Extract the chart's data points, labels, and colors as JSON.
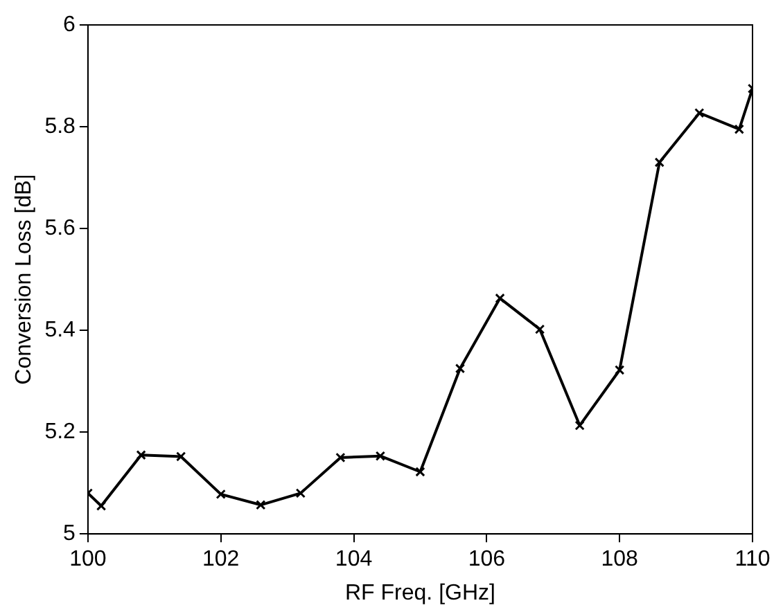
{
  "chart_data": {
    "type": "line",
    "xlabel": "RF Freq. [GHz]",
    "ylabel": "Conversion Loss [dB]",
    "x": [
      100,
      100.2,
      100.8,
      101.4,
      102,
      102.6,
      103.2,
      103.8,
      104.4,
      105,
      105.6,
      106.2,
      106.8,
      107.4,
      108,
      108.6,
      109.2,
      109.8,
      110
    ],
    "series": [
      {
        "color": "#000000",
        "values": [
          5.08,
          5.055,
          5.155,
          5.152,
          5.078,
          5.057,
          5.08,
          5.15,
          5.153,
          5.122,
          5.325,
          5.463,
          5.402,
          5.213,
          5.322,
          5.73,
          5.827,
          5.795,
          5.875
        ]
      }
    ],
    "xlim": [
      100,
      110
    ],
    "xticks": [
      100,
      102,
      104,
      106,
      108,
      110
    ],
    "ylim": [
      5,
      6
    ],
    "yticks": [
      5,
      5.2,
      5.4,
      5.6,
      5.8,
      6
    ],
    "grid": false,
    "legend": false,
    "marker": "cross",
    "line_style": "solid"
  }
}
